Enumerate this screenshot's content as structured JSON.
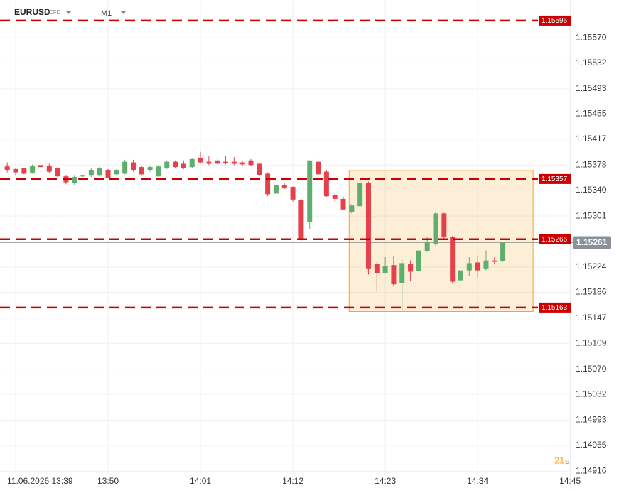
{
  "chart_data": {
    "type": "candlestick",
    "symbol": "EURUSD",
    "instrument": "CFD",
    "timeframe": "M1",
    "countdown": "21",
    "countdown_unit": "s",
    "up_color": "#5fae6e",
    "down_color": "#e5414b",
    "level_color": "#cc0000",
    "zone_color": "#f5a623",
    "x": [
      -1,
      0,
      1,
      2,
      3,
      4,
      5,
      6,
      7,
      8,
      9,
      10,
      11,
      12,
      13,
      14,
      15,
      16,
      17,
      18,
      19,
      20,
      21,
      22,
      23,
      24,
      25,
      26,
      27,
      28,
      29,
      30,
      31,
      32,
      33,
      34,
      35,
      36,
      37,
      38,
      39,
      40,
      41,
      42,
      43,
      44,
      45,
      46,
      47,
      48,
      49,
      50,
      51,
      52,
      53,
      54,
      55,
      56,
      57,
      58
    ],
    "open": [
      1.15376,
      1.15372,
      1.15373,
      1.15366,
      1.15378,
      1.15377,
      1.15373,
      1.15361,
      1.15351,
      1.15361,
      1.15362,
      1.15362,
      1.1537,
      1.15364,
      1.15365,
      1.15382,
      1.15375,
      1.1537,
      1.15361,
      1.15373,
      1.15383,
      1.1538,
      1.15375,
      1.15389,
      1.15383,
      1.15385,
      1.15383,
      1.15383,
      1.15382,
      1.15385,
      1.1538,
      1.15365,
      1.15335,
      1.15348,
      1.15345,
      1.15325,
      1.15292,
      1.15383,
      1.15368,
      1.15333,
      1.15327,
      1.15307,
      1.15316,
      1.15351,
      1.15229,
      1.15215,
      1.15227,
      1.152,
      1.15229,
      1.15218,
      1.15248,
      1.15259,
      1.15305,
      1.15269,
      1.15204,
      1.15219,
      1.15231,
      1.15222,
      1.15234,
      1.15233
    ],
    "high": [
      1.15382,
      1.15374,
      1.15374,
      1.15379,
      1.1538,
      1.1538,
      1.15375,
      1.15363,
      1.15362,
      1.15363,
      1.15373,
      1.15375,
      1.15372,
      1.15372,
      1.15386,
      1.15386,
      1.15377,
      1.15377,
      1.15378,
      1.15385,
      1.15385,
      1.15385,
      1.15388,
      1.15398,
      1.15391,
      1.15389,
      1.15392,
      1.1539,
      1.15385,
      1.15387,
      1.15382,
      1.15367,
      1.1535,
      1.1535,
      1.15346,
      1.15327,
      1.15385,
      1.15388,
      1.1537,
      1.15336,
      1.1533,
      1.15319,
      1.15355,
      1.15353,
      1.15231,
      1.15239,
      1.1524,
      1.15236,
      1.15234,
      1.15252,
      1.1527,
      1.15307,
      1.15306,
      1.15271,
      1.15224,
      1.15239,
      1.15241,
      1.15249,
      1.15239,
      1.15261
    ],
    "low": [
      1.15367,
      1.15362,
      1.15364,
      1.15365,
      1.15373,
      1.15366,
      1.15359,
      1.15349,
      1.15348,
      1.1536,
      1.1536,
      1.15361,
      1.15358,
      1.15363,
      1.15364,
      1.15368,
      1.15362,
      1.15368,
      1.1536,
      1.15372,
      1.15374,
      1.15372,
      1.15374,
      1.1538,
      1.15378,
      1.15378,
      1.15379,
      1.15378,
      1.15377,
      1.15376,
      1.15361,
      1.15331,
      1.15333,
      1.15342,
      1.15323,
      1.15264,
      1.15282,
      1.15362,
      1.1533,
      1.15323,
      1.1531,
      1.15305,
      1.15315,
      1.15213,
      1.15187,
      1.15214,
      1.15196,
      1.15158,
      1.15203,
      1.15216,
      1.15247,
      1.15256,
      1.15266,
      1.152,
      1.15187,
      1.15211,
      1.15208,
      1.15219,
      1.15229,
      1.15232
    ],
    "close": [
      1.1537,
      1.15367,
      1.15365,
      1.15377,
      1.15375,
      1.15368,
      1.15361,
      1.15352,
      1.1536,
      1.15362,
      1.1537,
      1.15374,
      1.15359,
      1.1537,
      1.15383,
      1.1537,
      1.15364,
      1.15375,
      1.15376,
      1.15383,
      1.15375,
      1.15374,
      1.15387,
      1.15382,
      1.1538,
      1.1538,
      1.15381,
      1.1538,
      1.15379,
      1.15378,
      1.15363,
      1.15334,
      1.15348,
      1.15343,
      1.15326,
      1.15267,
      1.15385,
      1.15364,
      1.15331,
      1.15327,
      1.15311,
      1.15317,
      1.15351,
      1.15222,
      1.15215,
      1.15226,
      1.15198,
      1.1523,
      1.15217,
      1.15249,
      1.15262,
      1.15305,
      1.15269,
      1.15202,
      1.15219,
      1.1523,
      1.15219,
      1.15234,
      1.15232,
      1.15261
    ],
    "levels": [
      1.15596,
      1.15357,
      1.15266,
      1.15163
    ],
    "current_price": 1.15261,
    "zone": {
      "x": [
        39.7,
        61.6
      ],
      "y": [
        1.15157,
        1.1537
      ]
    },
    "xlim": [
      -1.86,
      66.07
    ],
    "xticks": [
      {
        "value": 0,
        "label": "11.06.2026 13:39"
      },
      {
        "value": 11,
        "label": "13:50"
      },
      {
        "value": 22,
        "label": "14:01"
      },
      {
        "value": 33,
        "label": "14:12"
      },
      {
        "value": 44,
        "label": "14:23"
      },
      {
        "value": 55,
        "label": "14:34"
      },
      {
        "value": 66,
        "label": "14:45"
      }
    ],
    "ylim": [
      1.14911,
      1.15627
    ],
    "yticks": [
      {
        "value": 1.1557,
        "label": "1.15570"
      },
      1.15532,
      1.15493,
      1.15455,
      1.15417,
      1.15378,
      {
        "value": 1.1534,
        "label": "1.15340"
      },
      1.15301,
      1.15224,
      1.15186,
      1.15147,
      1.15109,
      {
        "value": 1.1507,
        "label": "1.15070"
      },
      1.15032,
      1.14993,
      1.14955,
      1.14916
    ],
    "grid": true
  }
}
